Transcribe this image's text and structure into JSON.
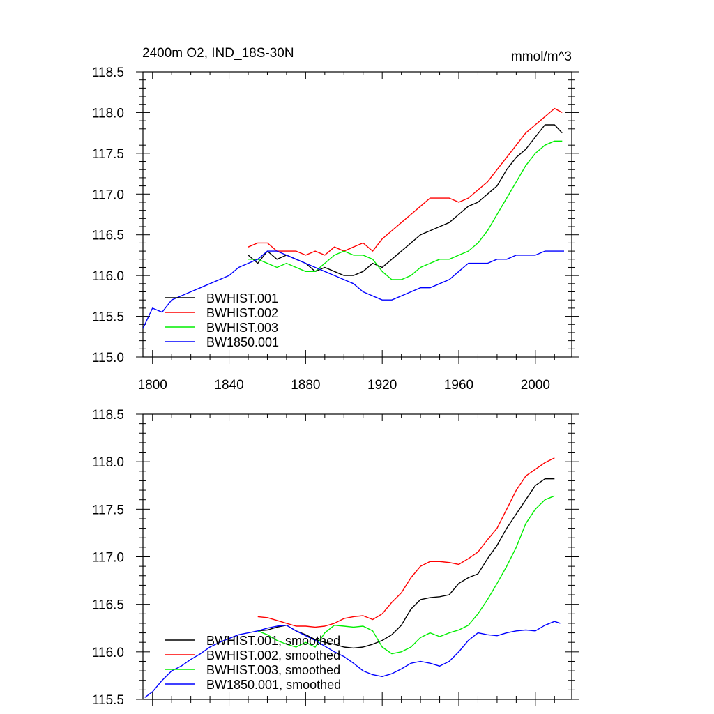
{
  "colors": {
    "BWHIST.001": "#000000",
    "BWHIST.002": "#ff0000",
    "BWHIST.003": "#00ee00",
    "BW1850.001": "#0000ff"
  },
  "chart_data": [
    {
      "type": "line",
      "title": "2400m O2, IND_18S-30N",
      "units": "mmol/m^3",
      "xlim": [
        1795,
        2019
      ],
      "ylim": [
        115.0,
        118.5
      ],
      "xticks": [
        1800,
        1840,
        1880,
        1920,
        1960,
        2000
      ],
      "yticks": [
        "115.0",
        "115.5",
        "116.0",
        "116.5",
        "117.0",
        "117.5",
        "118.0",
        "118.5"
      ],
      "legend_position": "bottom-left",
      "series": [
        {
          "name": "BWHIST.001",
          "color": "#000000",
          "x": [
            1850,
            1855,
            1860,
            1865,
            1870,
            1875,
            1880,
            1885,
            1890,
            1895,
            1900,
            1905,
            1910,
            1915,
            1920,
            1925,
            1930,
            1935,
            1940,
            1945,
            1950,
            1955,
            1960,
            1965,
            1970,
            1975,
            1980,
            1985,
            1990,
            1995,
            2000,
            2005,
            2010,
            2014
          ],
          "y": [
            116.25,
            116.15,
            116.3,
            116.2,
            116.25,
            116.2,
            116.15,
            116.05,
            116.1,
            116.05,
            116.0,
            116.0,
            116.05,
            116.15,
            116.1,
            116.2,
            116.3,
            116.4,
            116.5,
            116.55,
            116.6,
            116.65,
            116.75,
            116.85,
            116.9,
            117.0,
            117.1,
            117.3,
            117.45,
            117.55,
            117.7,
            117.85,
            117.85,
            117.75
          ]
        },
        {
          "name": "BWHIST.002",
          "color": "#ff0000",
          "x": [
            1850,
            1855,
            1860,
            1865,
            1870,
            1875,
            1880,
            1885,
            1890,
            1895,
            1900,
            1905,
            1910,
            1915,
            1920,
            1925,
            1930,
            1935,
            1940,
            1945,
            1950,
            1955,
            1960,
            1965,
            1970,
            1975,
            1980,
            1985,
            1990,
            1995,
            2000,
            2005,
            2010,
            2014
          ],
          "y": [
            116.35,
            116.4,
            116.4,
            116.3,
            116.3,
            116.3,
            116.25,
            116.3,
            116.25,
            116.35,
            116.3,
            116.35,
            116.4,
            116.3,
            116.45,
            116.55,
            116.65,
            116.75,
            116.85,
            116.95,
            116.95,
            116.95,
            116.9,
            116.95,
            117.05,
            117.15,
            117.3,
            117.45,
            117.6,
            117.75,
            117.85,
            117.95,
            118.05,
            118.0
          ]
        },
        {
          "name": "BWHIST.003",
          "color": "#00ee00",
          "x": [
            1850,
            1855,
            1860,
            1865,
            1870,
            1875,
            1880,
            1885,
            1890,
            1895,
            1900,
            1905,
            1910,
            1915,
            1920,
            1925,
            1930,
            1935,
            1940,
            1945,
            1950,
            1955,
            1960,
            1965,
            1970,
            1975,
            1980,
            1985,
            1990,
            1995,
            2000,
            2005,
            2010,
            2014
          ],
          "y": [
            116.2,
            116.2,
            116.15,
            116.1,
            116.15,
            116.1,
            116.05,
            116.05,
            116.15,
            116.25,
            116.3,
            116.25,
            116.25,
            116.2,
            116.05,
            115.95,
            115.95,
            116.0,
            116.1,
            116.15,
            116.2,
            116.2,
            116.25,
            116.3,
            116.4,
            116.55,
            116.75,
            116.95,
            117.15,
            117.35,
            117.5,
            117.6,
            117.65,
            117.65
          ]
        },
        {
          "name": "BW1850.001",
          "color": "#0000ff",
          "x": [
            1795,
            1800,
            1805,
            1810,
            1815,
            1820,
            1825,
            1830,
            1835,
            1840,
            1845,
            1850,
            1855,
            1860,
            1865,
            1870,
            1875,
            1880,
            1885,
            1890,
            1895,
            1900,
            1905,
            1910,
            1915,
            1920,
            1925,
            1930,
            1935,
            1940,
            1945,
            1950,
            1955,
            1960,
            1965,
            1970,
            1975,
            1980,
            1985,
            1990,
            1995,
            2000,
            2005,
            2010,
            2015
          ],
          "y": [
            115.35,
            115.6,
            115.55,
            115.7,
            115.75,
            115.8,
            115.85,
            115.9,
            115.95,
            116.0,
            116.1,
            116.15,
            116.2,
            116.3,
            116.3,
            116.25,
            116.2,
            116.15,
            116.1,
            116.05,
            116.0,
            115.95,
            115.9,
            115.8,
            115.75,
            115.7,
            115.7,
            115.75,
            115.8,
            115.85,
            115.85,
            115.9,
            115.95,
            116.05,
            116.15,
            116.15,
            116.15,
            116.2,
            116.2,
            116.25,
            116.25,
            116.25,
            116.3,
            116.3,
            116.3
          ]
        }
      ]
    },
    {
      "type": "line",
      "title": "",
      "units": "",
      "xlim": [
        1795,
        2019
      ],
      "ylim": [
        115.5,
        118.5
      ],
      "xticks": [
        1800,
        1840,
        1880,
        1920,
        1960,
        2000
      ],
      "yticks": [
        "115.5",
        "116.0",
        "116.5",
        "117.0",
        "117.5",
        "118.0",
        "118.5"
      ],
      "legend_position": "bottom-left",
      "series": [
        {
          "name": "BWHIST.001, smoothed",
          "color": "#000000",
          "x": [
            1855,
            1860,
            1865,
            1870,
            1875,
            1880,
            1885,
            1890,
            1895,
            1900,
            1905,
            1910,
            1915,
            1920,
            1925,
            1930,
            1935,
            1940,
            1945,
            1950,
            1955,
            1960,
            1965,
            1970,
            1975,
            1980,
            1985,
            1990,
            1995,
            2000,
            2005,
            2010
          ],
          "y": [
            116.22,
            116.23,
            116.26,
            116.28,
            116.22,
            116.18,
            116.13,
            116.1,
            116.08,
            116.05,
            116.04,
            116.05,
            116.08,
            116.12,
            116.18,
            116.28,
            116.45,
            116.55,
            116.57,
            116.58,
            116.6,
            116.72,
            116.78,
            116.82,
            116.98,
            117.12,
            117.3,
            117.45,
            117.6,
            117.75,
            117.82,
            117.82
          ]
        },
        {
          "name": "BWHIST.002, smoothed",
          "color": "#ff0000",
          "x": [
            1855,
            1860,
            1865,
            1870,
            1875,
            1880,
            1885,
            1890,
            1895,
            1900,
            1905,
            1910,
            1915,
            1920,
            1925,
            1930,
            1935,
            1940,
            1945,
            1950,
            1955,
            1960,
            1965,
            1970,
            1975,
            1980,
            1985,
            1990,
            1995,
            2000,
            2005,
            2010
          ],
          "y": [
            116.37,
            116.36,
            116.33,
            116.3,
            116.27,
            116.27,
            116.26,
            116.27,
            116.3,
            116.35,
            116.37,
            116.38,
            116.34,
            116.4,
            116.52,
            116.62,
            116.78,
            116.9,
            116.95,
            116.95,
            116.94,
            116.92,
            116.98,
            117.05,
            117.18,
            117.3,
            117.5,
            117.7,
            117.85,
            117.92,
            117.99,
            118.04
          ]
        },
        {
          "name": "BWHIST.003, smoothed",
          "color": "#00ee00",
          "x": [
            1855,
            1860,
            1865,
            1870,
            1875,
            1880,
            1885,
            1890,
            1895,
            1900,
            1905,
            1910,
            1915,
            1920,
            1925,
            1930,
            1935,
            1940,
            1945,
            1950,
            1955,
            1960,
            1965,
            1970,
            1975,
            1980,
            1985,
            1990,
            1995,
            2000,
            2005,
            2010
          ],
          "y": [
            116.22,
            116.18,
            116.12,
            116.08,
            116.05,
            116.1,
            116.05,
            116.2,
            116.28,
            116.27,
            116.26,
            116.27,
            116.22,
            116.05,
            115.98,
            116.0,
            116.05,
            116.15,
            116.2,
            116.16,
            116.2,
            116.23,
            116.28,
            116.4,
            116.55,
            116.72,
            116.9,
            117.1,
            117.35,
            117.5,
            117.6,
            117.64
          ]
        },
        {
          "name": "BW1850.001, smoothed",
          "color": "#0000ff",
          "x": [
            1796,
            1800,
            1805,
            1810,
            1815,
            1820,
            1825,
            1830,
            1835,
            1840,
            1845,
            1850,
            1855,
            1860,
            1865,
            1870,
            1875,
            1880,
            1885,
            1890,
            1895,
            1900,
            1905,
            1910,
            1915,
            1920,
            1925,
            1930,
            1935,
            1940,
            1945,
            1950,
            1955,
            1960,
            1965,
            1970,
            1975,
            1980,
            1985,
            1990,
            1995,
            2000,
            2005,
            2010,
            2013
          ],
          "y": [
            115.52,
            115.58,
            115.7,
            115.8,
            115.85,
            115.92,
            115.98,
            116.05,
            116.1,
            116.14,
            116.18,
            116.2,
            116.22,
            116.25,
            116.27,
            116.28,
            116.22,
            116.17,
            116.12,
            116.06,
            116.0,
            115.95,
            115.88,
            115.8,
            115.76,
            115.74,
            115.77,
            115.82,
            115.88,
            115.9,
            115.88,
            115.85,
            115.9,
            116.0,
            116.12,
            116.2,
            116.18,
            116.17,
            116.2,
            116.22,
            116.23,
            116.22,
            116.28,
            116.32,
            116.3
          ]
        }
      ]
    }
  ]
}
